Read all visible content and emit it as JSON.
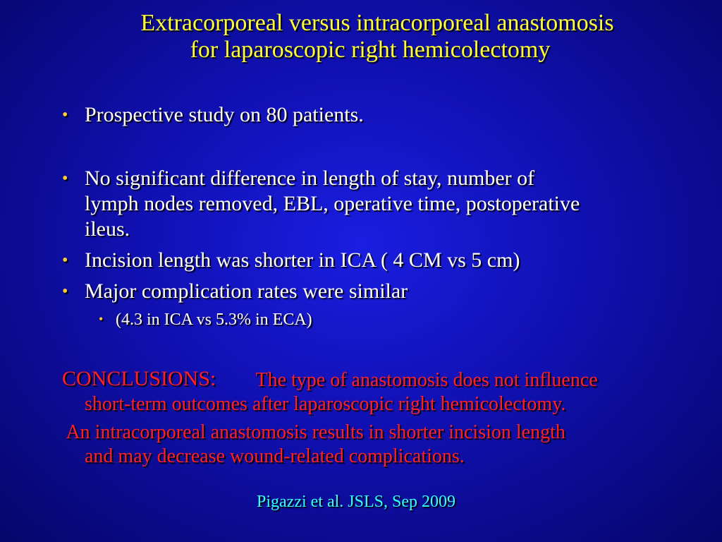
{
  "title": [
    "Extracorporeal versus intracorporeal anastomosis",
    "for laparoscopic right hemicolectomy"
  ],
  "bullets": [
    {
      "lines": [
        "Prospective study on 80 patients."
      ]
    },
    {
      "lines": [
        "No significant difference in length of stay, number of",
        "lymph nodes removed, EBL, operative time, postoperative",
        "ileus."
      ]
    },
    {
      "lines": [
        "Incision length was shorter in ICA ( 4 CM vs 5 cm)"
      ]
    },
    {
      "lines": [
        "Major complication rates were similar"
      ]
    }
  ],
  "sub_bullet": "(4.3 in ICA vs 5.3% in ECA)",
  "conclusions": {
    "label": "CONCLUSIONS:",
    "lines": [
      " The type of anastomosis does not influence",
      "short-term outcomes after laparoscopic right hemicolectomy.",
      " An intracorporeal anastomosis results in shorter incision length",
      "and may decrease wound-related complications."
    ]
  },
  "citation": "Pigazzi et al. JSLS, Sep 2009"
}
